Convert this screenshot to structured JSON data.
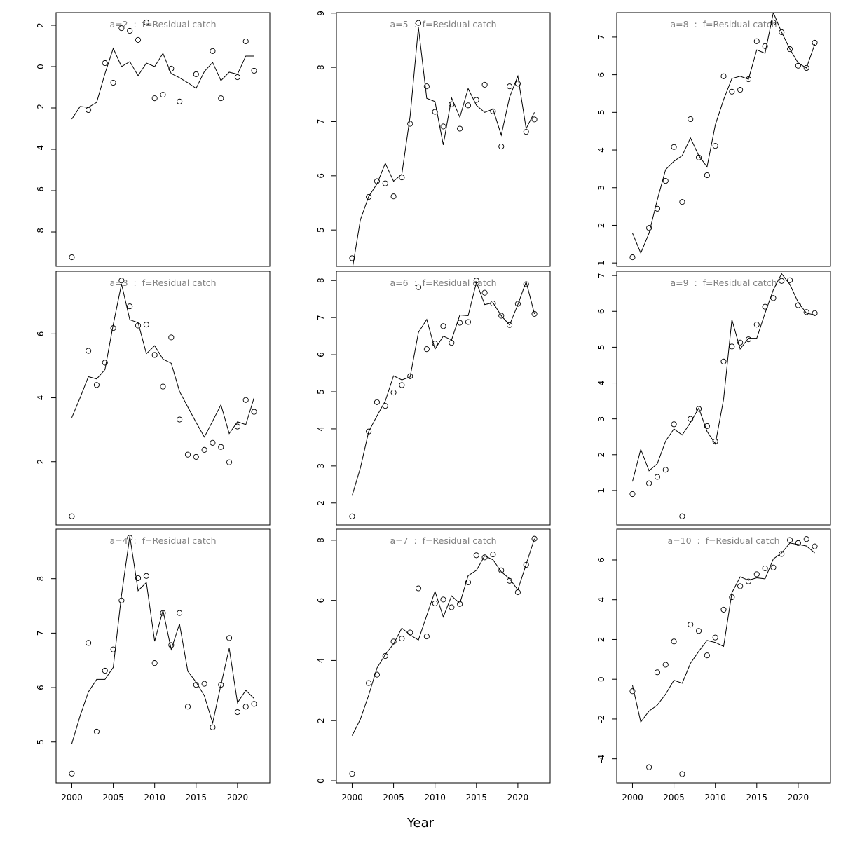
{
  "x_label": "Year",
  "chart_data": [
    {
      "type": "line",
      "title": "a=2  :  f=Residual catch",
      "x": [
        2000,
        2001,
        2002,
        2003,
        2004,
        2005,
        2006,
        2007,
        2008,
        2009,
        2010,
        2011,
        2012,
        2013,
        2014,
        2015,
        2016,
        2017,
        2018,
        2019,
        2020,
        2021,
        2022
      ],
      "xlim": [
        1998.1,
        2023.9
      ],
      "ylim": [
        -9.66,
        2.61
      ],
      "yticks": [
        -8,
        -6,
        -4,
        -2,
        0,
        2
      ],
      "series": [
        {
          "style": "line",
          "color": "#000000",
          "values": [
            -2.54,
            -1.93,
            -1.97,
            -1.73,
            -0.34,
            0.88,
            0,
            0.24,
            -0.44,
            0.17,
            0,
            0.64,
            -0.34,
            -0.54,
            -0.78,
            -1.05,
            -0.24,
            0.2,
            -0.68,
            -0.27,
            -0.37,
            0.51,
            0.51
          ]
        },
        {
          "style": "points",
          "color": "#000000",
          "values": [
            -9.22,
            null,
            -2.1,
            null,
            0.17,
            -0.78,
            1.86,
            1.73,
            1.29,
            2.14,
            -1.53,
            -1.36,
            -0.1,
            -1.69,
            null,
            -0.37,
            null,
            0.75,
            -1.53,
            null,
            -0.51,
            1.22,
            -0.2
          ]
        }
      ]
    },
    {
      "type": "line",
      "title": "a=3  :  f=Residual catch",
      "x": [
        2000,
        2001,
        2002,
        2003,
        2004,
        2005,
        2006,
        2007,
        2008,
        2009,
        2010,
        2011,
        2012,
        2013,
        2014,
        2015,
        2016,
        2017,
        2018,
        2019,
        2020,
        2021,
        2022
      ],
      "xlim": [
        1998.1,
        2023.9
      ],
      "ylim": [
        0.02,
        7.96
      ],
      "yticks": [
        2,
        4,
        6
      ],
      "series": [
        {
          "style": "line",
          "color": "#000000",
          "values": [
            3.38,
            4.0,
            4.66,
            4.59,
            4.88,
            6.29,
            7.56,
            6.44,
            6.35,
            5.38,
            5.63,
            5.21,
            5.08,
            4.2,
            3.71,
            3.23,
            2.77,
            3.27,
            3.78,
            2.88,
            3.25,
            3.16,
            4.0
          ]
        },
        {
          "style": "points",
          "color": "#000000",
          "values": [
            0.29,
            null,
            5.47,
            4.4,
            5.1,
            6.18,
            7.67,
            6.86,
            6.26,
            6.29,
            5.34,
            4.35,
            5.89,
            3.32,
            2.22,
            2.15,
            2.37,
            2.59,
            2.46,
            1.98,
            3.1,
            3.93,
            3.56
          ]
        }
      ]
    },
    {
      "type": "line",
      "title": "a=4  :  f=Residual catch",
      "x": [
        2000,
        2001,
        2002,
        2003,
        2004,
        2005,
        2006,
        2007,
        2008,
        2009,
        2010,
        2011,
        2012,
        2013,
        2014,
        2015,
        2016,
        2017,
        2018,
        2019,
        2020,
        2021,
        2022
      ],
      "xlim": [
        1998.1,
        2023.9
      ],
      "ylim": [
        4.25,
        8.91
      ],
      "yticks": [
        5,
        6,
        7,
        8
      ],
      "xticks": [
        2000,
        2005,
        2010,
        2015,
        2020
      ],
      "series": [
        {
          "style": "line",
          "color": "#000000",
          "values": [
            4.97,
            5.48,
            5.92,
            6.15,
            6.15,
            6.37,
            7.7,
            8.78,
            7.78,
            7.93,
            6.85,
            7.42,
            6.7,
            7.17,
            6.3,
            6.1,
            5.85,
            5.35,
            6.05,
            6.72,
            5.72,
            5.95,
            5.8
          ]
        },
        {
          "style": "points",
          "color": "#000000",
          "values": [
            4.42,
            null,
            6.82,
            5.19,
            6.31,
            6.7,
            7.6,
            8.75,
            8.01,
            8.05,
            6.45,
            7.37,
            6.78,
            7.37,
            5.65,
            6.05,
            6.07,
            5.27,
            6.05,
            6.91,
            5.55,
            5.65,
            5.7
          ]
        }
      ]
    },
    {
      "type": "line",
      "title": "a=5  :  f=Residual catch",
      "x": [
        2000,
        2001,
        2002,
        2003,
        2004,
        2005,
        2006,
        2007,
        2008,
        2009,
        2010,
        2011,
        2012,
        2013,
        2014,
        2015,
        2016,
        2017,
        2018,
        2019,
        2020,
        2021,
        2022
      ],
      "xlim": [
        1998.1,
        2023.9
      ],
      "ylim": [
        4.33,
        9.01
      ],
      "yticks": [
        5,
        6,
        7,
        8,
        9
      ],
      "series": [
        {
          "style": "line",
          "color": "#000000",
          "values": [
            4.26,
            5.19,
            5.62,
            5.85,
            6.23,
            5.9,
            6.03,
            7.1,
            8.74,
            7.43,
            7.37,
            6.57,
            7.44,
            7.08,
            7.61,
            7.3,
            7.17,
            7.23,
            6.75,
            7.45,
            7.84,
            6.87,
            7.17
          ]
        },
        {
          "style": "points",
          "color": "#000000",
          "values": [
            4.48,
            null,
            5.61,
            5.9,
            5.86,
            5.62,
            5.97,
            6.96,
            8.82,
            7.65,
            7.18,
            6.91,
            7.32,
            6.87,
            7.3,
            7.4,
            7.68,
            7.19,
            6.54,
            7.65,
            7.7,
            6.81,
            7.04
          ]
        }
      ]
    },
    {
      "type": "line",
      "title": "a=6  :  f=Residual catch",
      "x": [
        2000,
        2001,
        2002,
        2003,
        2004,
        2005,
        2006,
        2007,
        2008,
        2009,
        2010,
        2011,
        2012,
        2013,
        2014,
        2015,
        2016,
        2017,
        2018,
        2019,
        2020,
        2021,
        2022
      ],
      "xlim": [
        1998.1,
        2023.9
      ],
      "ylim": [
        1.41,
        8.25
      ],
      "yticks": [
        2,
        3,
        4,
        5,
        6,
        7,
        8
      ],
      "series": [
        {
          "style": "line",
          "color": "#000000",
          "values": [
            2.2,
            2.95,
            3.93,
            4.35,
            4.75,
            5.43,
            5.32,
            5.4,
            6.6,
            6.95,
            6.15,
            6.5,
            6.4,
            7.07,
            7.05,
            7.95,
            7.35,
            7.4,
            7.05,
            6.8,
            7.35,
            7.97,
            7.1
          ]
        },
        {
          "style": "points",
          "color": "#000000",
          "values": [
            1.64,
            null,
            3.93,
            4.72,
            4.62,
            4.98,
            5.18,
            5.42,
            7.82,
            6.15,
            6.3,
            6.77,
            6.32,
            6.86,
            6.88,
            8.0,
            7.67,
            7.38,
            7.05,
            6.8,
            7.37,
            7.9,
            7.1
          ]
        }
      ]
    },
    {
      "type": "line",
      "title": "a=7  :  f=Residual catch",
      "x": [
        2000,
        2001,
        2002,
        2003,
        2004,
        2005,
        2006,
        2007,
        2008,
        2009,
        2010,
        2011,
        2012,
        2013,
        2014,
        2015,
        2016,
        2017,
        2018,
        2019,
        2020,
        2021,
        2022
      ],
      "xlim": [
        1998.1,
        2023.9
      ],
      "ylim": [
        -0.07,
        8.37
      ],
      "yticks": [
        0,
        2,
        4,
        6,
        8
      ],
      "xticks": [
        2000,
        2005,
        2010,
        2015,
        2020
      ],
      "series": [
        {
          "style": "line",
          "color": "#000000",
          "values": [
            1.5,
            2.05,
            2.85,
            3.75,
            4.2,
            4.55,
            5.08,
            4.85,
            4.68,
            5.5,
            6.3,
            5.45,
            6.15,
            5.9,
            6.82,
            7.0,
            7.48,
            7.35,
            6.95,
            6.72,
            6.35,
            7.2,
            8.05
          ]
        },
        {
          "style": "points",
          "color": "#000000",
          "values": [
            0.23,
            null,
            3.25,
            3.53,
            4.15,
            4.63,
            4.73,
            4.93,
            6.4,
            4.8,
            5.9,
            6.03,
            5.77,
            5.88,
            6.6,
            7.5,
            7.43,
            7.53,
            7.0,
            6.65,
            6.27,
            7.18,
            8.05
          ]
        }
      ]
    },
    {
      "type": "line",
      "title": "a=8  :  f=Residual catch",
      "x": [
        2000,
        2001,
        2002,
        2003,
        2004,
        2005,
        2006,
        2007,
        2008,
        2009,
        2010,
        2011,
        2012,
        2013,
        2014,
        2015,
        2016,
        2017,
        2018,
        2019,
        2020,
        2021,
        2022
      ],
      "xlim": [
        1998.1,
        2023.9
      ],
      "ylim": [
        0.91,
        7.65
      ],
      "yticks": [
        1,
        2,
        3,
        4,
        5,
        6,
        7
      ],
      "series": [
        {
          "style": "line",
          "color": "#000000",
          "values": [
            1.79,
            1.26,
            1.79,
            2.68,
            3.48,
            3.7,
            3.85,
            4.32,
            3.85,
            3.55,
            4.67,
            5.34,
            5.9,
            5.96,
            5.88,
            6.66,
            6.57,
            7.65,
            7.13,
            6.68,
            6.31,
            6.18,
            6.81
          ]
        },
        {
          "style": "points",
          "color": "#000000",
          "values": [
            1.15,
            null,
            1.93,
            2.44,
            3.18,
            4.08,
            2.62,
            4.82,
            3.8,
            3.33,
            4.11,
            5.96,
            5.55,
            5.6,
            5.88,
            6.89,
            6.76,
            7.39,
            7.13,
            6.68,
            6.24,
            6.18,
            6.85
          ]
        }
      ]
    },
    {
      "type": "line",
      "title": "a=9  :  f=Residual catch",
      "x": [
        2000,
        2001,
        2002,
        2003,
        2004,
        2005,
        2006,
        2007,
        2008,
        2009,
        2010,
        2011,
        2012,
        2013,
        2014,
        2015,
        2016,
        2017,
        2018,
        2019,
        2020,
        2021,
        2022
      ],
      "xlim": [
        1998.1,
        2023.9
      ],
      "ylim": [
        0.04,
        7.12
      ],
      "yticks": [
        1,
        2,
        3,
        4,
        5,
        6,
        7
      ],
      "series": [
        {
          "style": "line",
          "color": "#000000",
          "values": [
            1.25,
            2.15,
            1.55,
            1.75,
            2.38,
            2.72,
            2.55,
            2.9,
            3.3,
            2.65,
            2.3,
            3.55,
            5.77,
            4.95,
            5.25,
            5.25,
            5.95,
            6.6,
            7.05,
            6.75,
            6.25,
            5.95,
            5.9
          ]
        },
        {
          "style": "points",
          "color": "#000000",
          "values": [
            0.9,
            null,
            1.2,
            1.38,
            1.58,
            2.85,
            0.28,
            3.0,
            3.28,
            2.8,
            2.37,
            4.6,
            5.02,
            5.13,
            5.22,
            5.63,
            6.13,
            6.37,
            6.85,
            6.87,
            6.17,
            5.98,
            5.95
          ]
        }
      ]
    },
    {
      "type": "line",
      "title": "a=10  :  f=Residual catch",
      "x": [
        2000,
        2001,
        2002,
        2003,
        2004,
        2005,
        2006,
        2007,
        2008,
        2009,
        2010,
        2011,
        2012,
        2013,
        2014,
        2015,
        2016,
        2017,
        2018,
        2019,
        2020,
        2021,
        2022
      ],
      "xlim": [
        1998.1,
        2023.9
      ],
      "ylim": [
        -5.21,
        7.55
      ],
      "yticks": [
        -4,
        -2,
        0,
        2,
        4,
        6
      ],
      "xticks": [
        2000,
        2005,
        2010,
        2015,
        2020
      ],
      "series": [
        {
          "style": "line",
          "color": "#000000",
          "values": [
            -0.3,
            -2.15,
            -1.6,
            -1.3,
            -0.75,
            -0.05,
            -0.2,
            0.8,
            1.4,
            1.95,
            1.85,
            1.65,
            4.35,
            5.15,
            4.98,
            5.1,
            5.05,
            6.05,
            6.35,
            6.85,
            6.78,
            6.7,
            6.35
          ]
        },
        {
          "style": "points",
          "color": "#000000",
          "values": [
            -0.6,
            null,
            -4.42,
            0.35,
            0.73,
            1.9,
            -4.77,
            2.75,
            2.43,
            1.2,
            2.1,
            3.5,
            4.13,
            4.68,
            4.92,
            5.28,
            5.58,
            5.62,
            6.3,
            7.0,
            6.85,
            7.05,
            6.68
          ]
        }
      ]
    }
  ]
}
